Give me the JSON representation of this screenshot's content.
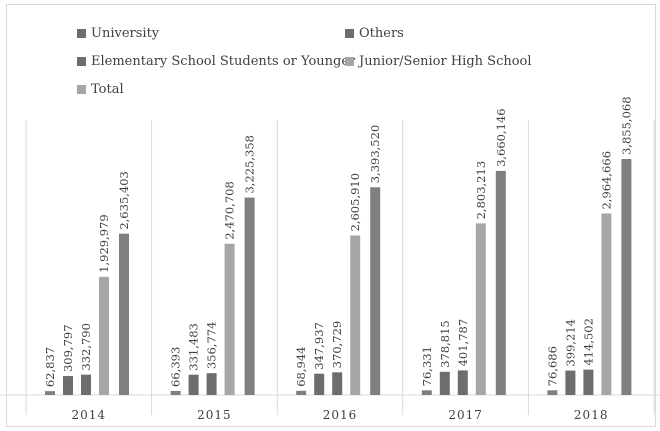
{
  "chart_data": {
    "type": "bar",
    "categories": [
      "2014",
      "2015",
      "2016",
      "2017",
      "2018"
    ],
    "series": [
      {
        "name": "University",
        "color": "#7f7f7f",
        "values": [
          62837,
          66393,
          68944,
          76331,
          76686
        ],
        "labels": [
          "62,837",
          "66,393",
          "68,944",
          "76,331",
          "76,686"
        ]
      },
      {
        "name": "Others",
        "color": "#6d6d6d",
        "values": [
          309797,
          331483,
          347937,
          378815,
          399214
        ],
        "labels": [
          "309,797",
          "331,483",
          "347,937",
          "378,815",
          "399,214"
        ]
      },
      {
        "name": "Elementary School Students or Younger",
        "color": "#6d6d6d",
        "values": [
          332790,
          356774,
          370729,
          401787,
          414502
        ],
        "labels": [
          "332,790",
          "356,774",
          "370,729",
          "401,787",
          "414,502"
        ]
      },
      {
        "name": "Junior/Senior High School",
        "color": "#a6a6a6",
        "values": [
          1929979,
          2470708,
          2605910,
          2803213,
          2964666
        ],
        "labels": [
          "1,929,979",
          "2,470,708",
          "2,605,910",
          "2,803,213",
          "2,964,666"
        ]
      },
      {
        "name": "Total",
        "color": "#7f7f7f",
        "values": [
          2635403,
          3225358,
          3393520,
          3660146,
          3855068
        ],
        "labels": [
          "2,635,403",
          "3,225,358",
          "3,393,520",
          "3,660,146",
          "3,855,068"
        ]
      }
    ],
    "ylim": [
      0,
      4200000
    ],
    "legend_position": "top",
    "grid": false
  }
}
